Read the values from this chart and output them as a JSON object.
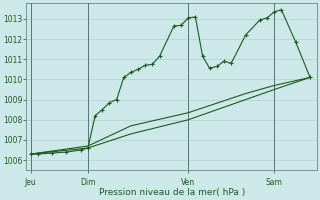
{
  "background_color": "#cce8e8",
  "grid_color": "#b0d0d0",
  "line_color": "#1a5c1a",
  "marker_color": "#1a5c1a",
  "xlabel": "Pression niveau de la mer( hPa )",
  "ylim": [
    1005.5,
    1013.8
  ],
  "yticks": [
    1006,
    1007,
    1008,
    1009,
    1010,
    1011,
    1012,
    1013
  ],
  "xtick_labels": [
    "Jeu",
    "Dim",
    "Ven",
    "Sam"
  ],
  "xtick_positions": [
    0,
    4,
    11,
    17
  ],
  "xlim": [
    -0.3,
    20.0
  ],
  "series1": [
    [
      0,
      1006.3
    ],
    [
      0.5,
      1006.3
    ],
    [
      1.5,
      1006.35
    ],
    [
      2.5,
      1006.4
    ],
    [
      3.5,
      1006.5
    ],
    [
      4,
      1006.6
    ],
    [
      4.5,
      1008.2
    ],
    [
      5,
      1008.5
    ],
    [
      5.5,
      1008.85
    ],
    [
      6,
      1009.0
    ],
    [
      6.5,
      1010.1
    ],
    [
      7,
      1010.35
    ],
    [
      7.5,
      1010.5
    ],
    [
      8,
      1010.7
    ],
    [
      8.5,
      1010.75
    ],
    [
      9,
      1011.15
    ],
    [
      10,
      1012.65
    ],
    [
      10.5,
      1012.68
    ],
    [
      11,
      1013.05
    ],
    [
      11.5,
      1013.1
    ],
    [
      12,
      1011.15
    ],
    [
      12.5,
      1010.55
    ],
    [
      13,
      1010.65
    ],
    [
      13.5,
      1010.9
    ],
    [
      14,
      1010.8
    ],
    [
      15,
      1012.2
    ],
    [
      16,
      1012.95
    ],
    [
      16.5,
      1013.05
    ],
    [
      17,
      1013.35
    ],
    [
      17.5,
      1013.45
    ],
    [
      18.5,
      1011.85
    ],
    [
      19.5,
      1010.1
    ]
  ],
  "series2": [
    [
      0,
      1006.3
    ],
    [
      4,
      1006.6
    ],
    [
      7,
      1007.3
    ],
    [
      11,
      1008.0
    ],
    [
      15,
      1009.0
    ],
    [
      17,
      1009.5
    ],
    [
      19.5,
      1010.1
    ]
  ],
  "series3": [
    [
      0,
      1006.3
    ],
    [
      4,
      1006.7
    ],
    [
      7,
      1007.7
    ],
    [
      11,
      1008.35
    ],
    [
      15,
      1009.3
    ],
    [
      17,
      1009.7
    ],
    [
      19.5,
      1010.1
    ]
  ]
}
